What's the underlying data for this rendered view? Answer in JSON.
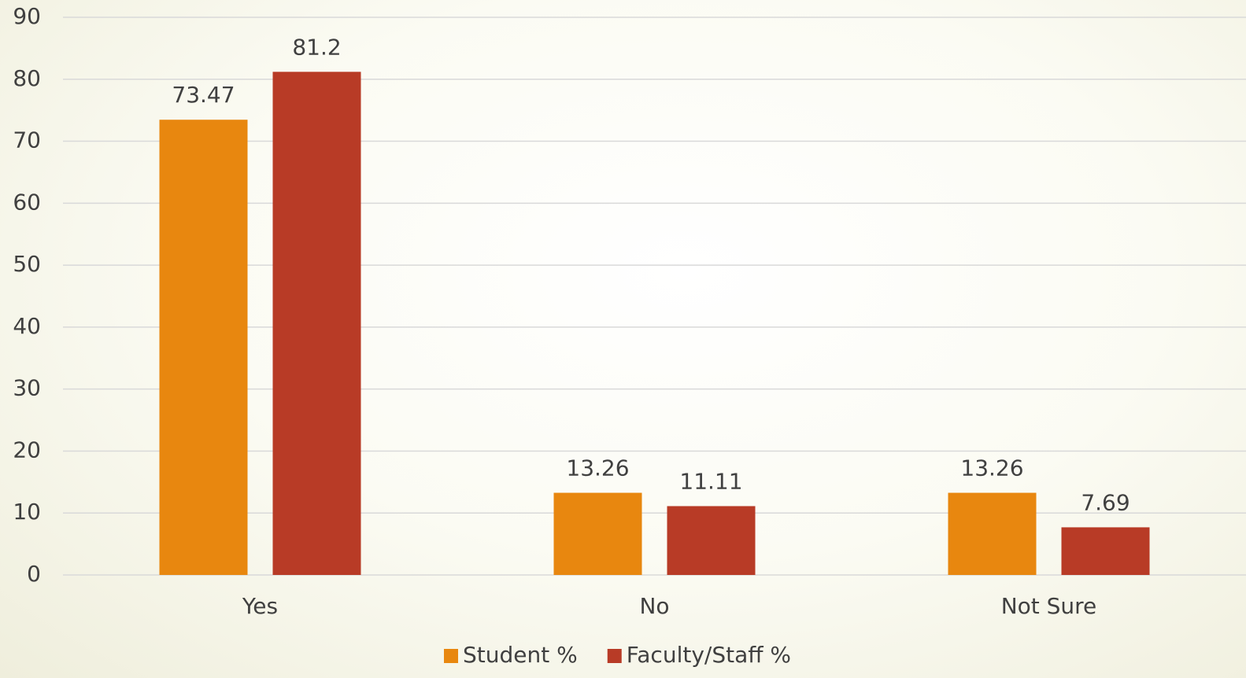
{
  "chart_data": {
    "type": "bar",
    "categories": [
      "Yes",
      "No",
      "Not Sure"
    ],
    "series": [
      {
        "name": "Student %",
        "color": "#e8870f",
        "values": [
          73.47,
          13.26,
          13.26
        ]
      },
      {
        "name": "Faculty/Staff %",
        "color": "#b83b26",
        "values": [
          81.2,
          11.11,
          7.69
        ]
      }
    ],
    "ylim": [
      0,
      90
    ],
    "yticks": [
      0,
      10,
      20,
      30,
      40,
      50,
      60,
      70,
      80,
      90
    ],
    "grid": true,
    "legend": "bottom"
  }
}
